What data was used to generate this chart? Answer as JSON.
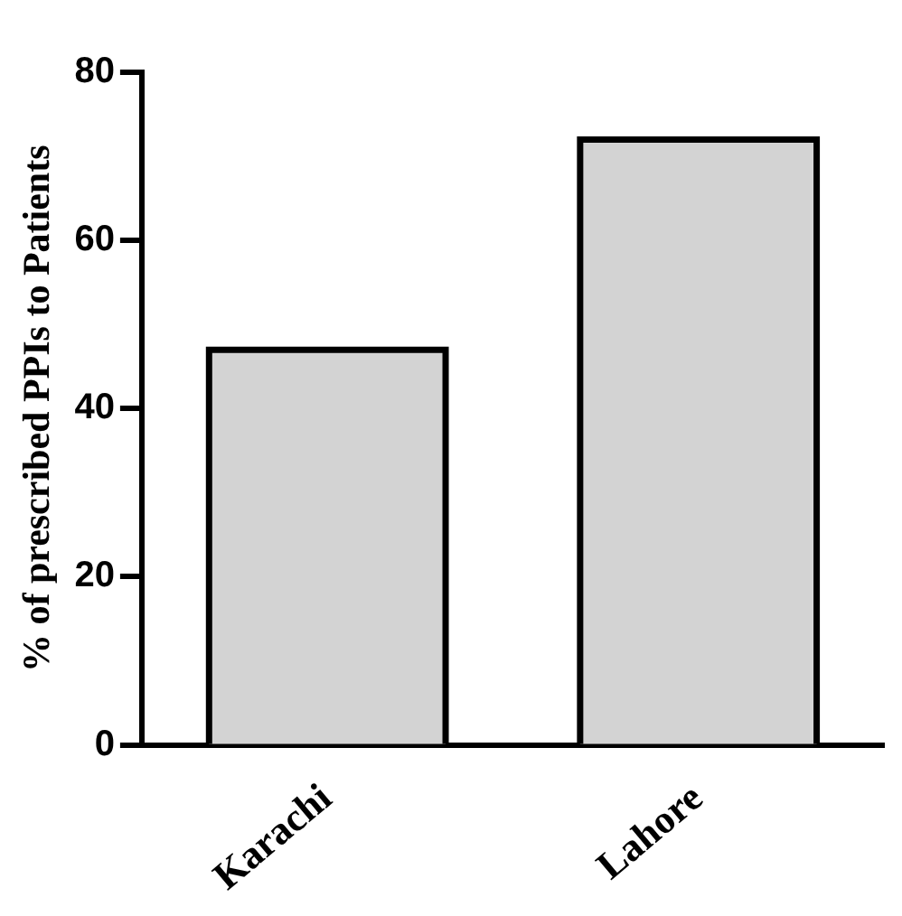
{
  "chart_data": {
    "type": "bar",
    "ylabel": "% of prescribed PPIs to Patients",
    "categories": [
      "Karachi",
      "Lahore"
    ],
    "values": [
      47,
      72
    ],
    "color": "#d3d3d3",
    "ylim": [
      0,
      80
    ],
    "yticks": [
      0,
      20,
      40,
      60,
      80
    ],
    "grid": false,
    "legend": false
  }
}
